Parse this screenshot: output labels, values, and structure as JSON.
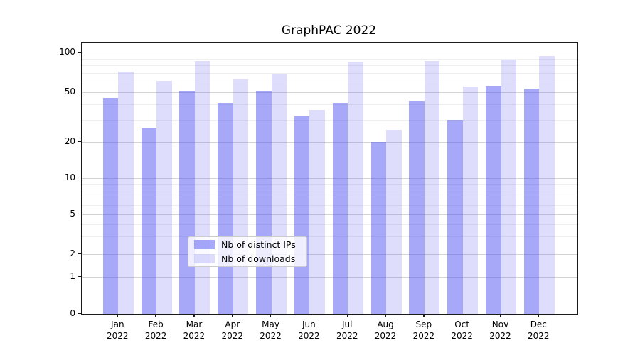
{
  "title": "GraphPAC 2022",
  "legend": {
    "items": [
      {
        "label": "Nb of distinct IPs",
        "color": "rgba(88,88,242,0.52)"
      },
      {
        "label": "Nb of downloads",
        "color": "rgba(88,88,242,0.20)"
      }
    ]
  },
  "colors": {
    "bar_distinct_ips_rendered": "#a8a8f7",
    "bar_downloads_rendered": "#dedef9",
    "major_grid": "#d4d4d4",
    "minor_grid": "#efefef",
    "spine": "#1a1a1a"
  },
  "chart_data": {
    "type": "bar",
    "title": "GraphPAC 2022",
    "categories": [
      "Jan 2022",
      "Feb 2022",
      "Mar 2022",
      "Apr 2022",
      "May 2022",
      "Jun 2022",
      "Jul 2022",
      "Aug 2022",
      "Sep 2022",
      "Oct 2022",
      "Nov 2022",
      "Dec 2022"
    ],
    "series": [
      {
        "name": "Nb of distinct IPs",
        "color": "rgba(88,88,242,0.52)",
        "values": [
          45,
          26,
          51,
          41,
          51,
          32,
          41,
          20,
          43,
          30,
          56,
          53
        ]
      },
      {
        "name": "Nb of downloads",
        "color": "rgba(88,88,242,0.20)",
        "values": [
          72,
          61,
          86,
          63,
          69,
          36,
          84,
          25,
          87,
          55,
          89,
          94
        ]
      }
    ],
    "yscale": "log-like (0,1,2,5,10,20,50,100)",
    "yticks": [
      0,
      1,
      2,
      5,
      10,
      20,
      50,
      100
    ],
    "ytick_labels": [
      "0",
      "1",
      "2",
      "5",
      "10",
      "20",
      "50",
      "100"
    ],
    "minor_yticks": [
      3,
      4,
      6,
      7,
      8,
      9,
      30,
      40,
      60,
      70,
      80,
      90
    ],
    "ylim": [
      0,
      120
    ],
    "grid": true,
    "legend_position": "lower center"
  }
}
